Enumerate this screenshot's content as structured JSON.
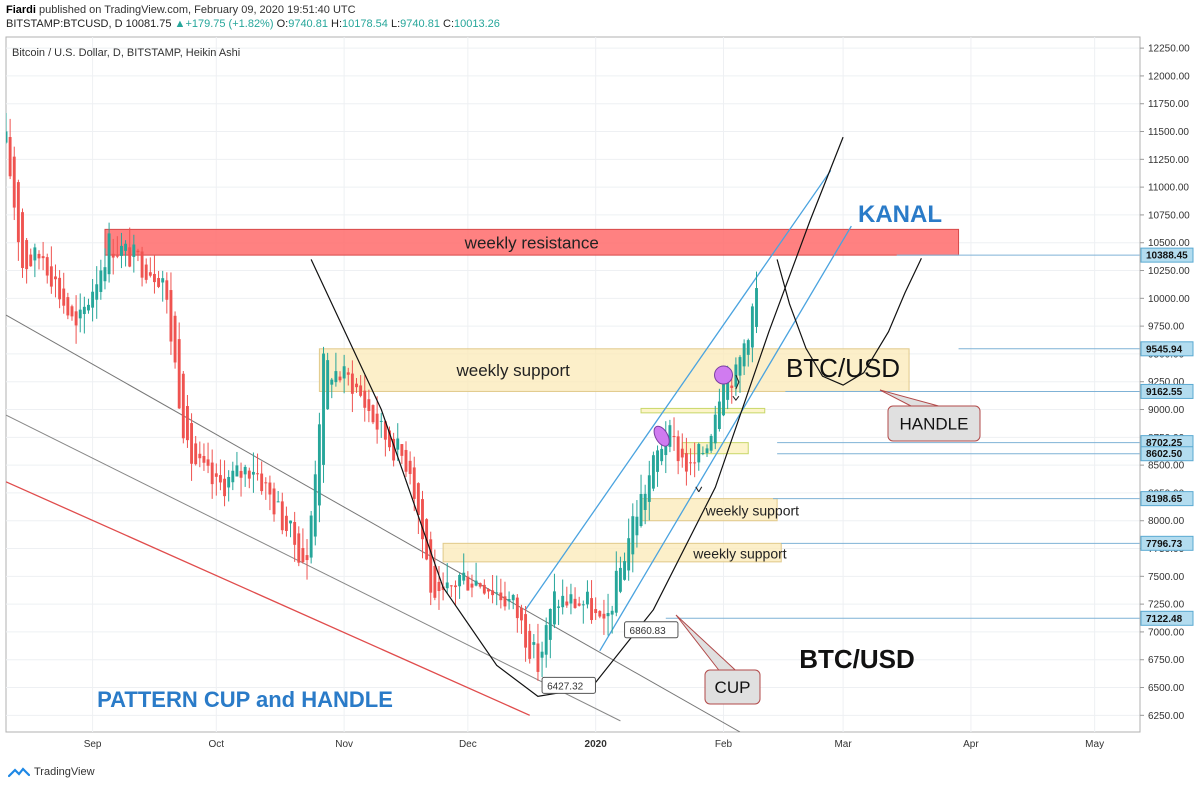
{
  "header": {
    "author": "Fiardi",
    "published_text": "published on TradingView.com, February 09, 2020 19:51:40 UTC",
    "symbol": "BITSTAMP:BTCUSD, D",
    "price": "10081.75",
    "change_icon": "triangle-up-icon",
    "change": "+179.75 (+1.82%)",
    "o_label": "O:",
    "o": "9740.81",
    "h_label": "H:",
    "h": "10178.54",
    "l_label": "L:",
    "l": "9740.81",
    "c_label": "C:",
    "c": "10013.26"
  },
  "footer": {
    "brand": "TradingView",
    "logo_icon": "tradingview-logo-icon"
  },
  "colors": {
    "up": "#26a69a",
    "down": "#ef5350",
    "channel": "#4aa3df",
    "support": "#fbe9b7",
    "resistance": "#ff6b6b"
  },
  "chart_data": {
    "type": "candlestick",
    "title": "Bitcoin / U.S. Dollar, D, BITSTAMP, Heikin Ashi",
    "y_range": [
      6100,
      12350
    ],
    "x_range": [
      "2019-08-11",
      "2020-05-12"
    ],
    "y_ticks": [
      12250,
      12000,
      11750,
      11500,
      11250,
      11000,
      10750,
      10500,
      10250,
      10000,
      9750,
      9500,
      9250,
      9000,
      8750,
      8500,
      8250,
      8000,
      7750,
      7500,
      7250,
      7000,
      6750,
      6500,
      6250
    ],
    "x_ticks": [
      {
        "date": "2019-09-01",
        "label": "Sep"
      },
      {
        "date": "2019-10-01",
        "label": "Oct"
      },
      {
        "date": "2019-11-01",
        "label": "Nov"
      },
      {
        "date": "2019-12-01",
        "label": "Dec"
      },
      {
        "date": "2020-01-01",
        "label": "2020"
      },
      {
        "date": "2020-02-01",
        "label": "Feb"
      },
      {
        "date": "2020-03-01",
        "label": "Mar"
      },
      {
        "date": "2020-04-01",
        "label": "Apr"
      },
      {
        "date": "2020-05-01",
        "label": "May"
      }
    ],
    "price_tags": [
      "10388.45",
      "9545.94",
      "9162.55",
      "8702.25",
      "8602.50",
      "8198.65",
      "7796.73",
      "7122.48"
    ],
    "series_anchors": [
      {
        "date": "2019-08-11",
        "price": 11400
      },
      {
        "date": "2019-08-15",
        "price": 10300
      },
      {
        "date": "2019-08-20",
        "price": 10400
      },
      {
        "date": "2019-08-28",
        "price": 9700
      },
      {
        "date": "2019-09-05",
        "price": 10500
      },
      {
        "date": "2019-09-18",
        "price": 10200
      },
      {
        "date": "2019-09-24",
        "price": 8600
      },
      {
        "date": "2019-10-01",
        "price": 8300
      },
      {
        "date": "2019-10-10",
        "price": 8500
      },
      {
        "date": "2019-10-23",
        "price": 7600
      },
      {
        "date": "2019-10-27",
        "price": 9400
      },
      {
        "date": "2019-11-03",
        "price": 9250
      },
      {
        "date": "2019-11-10",
        "price": 8800
      },
      {
        "date": "2019-11-17",
        "price": 8500
      },
      {
        "date": "2019-11-23",
        "price": 7200
      },
      {
        "date": "2019-11-29",
        "price": 7500
      },
      {
        "date": "2019-12-05",
        "price": 7450
      },
      {
        "date": "2019-12-12",
        "price": 7250
      },
      {
        "date": "2019-12-18",
        "price": 6700
      },
      {
        "date": "2019-12-22",
        "price": 7300
      },
      {
        "date": "2019-12-30",
        "price": 7250
      },
      {
        "date": "2020-01-03",
        "price": 7000
      },
      {
        "date": "2020-01-10",
        "price": 8000
      },
      {
        "date": "2020-01-18",
        "price": 8800
      },
      {
        "date": "2020-01-24",
        "price": 8450
      },
      {
        "date": "2020-01-28",
        "price": 8700
      },
      {
        "date": "2020-02-01",
        "price": 9350
      },
      {
        "date": "2020-02-04",
        "price": 9300
      },
      {
        "date": "2020-02-09",
        "price": 10050
      }
    ],
    "annotations": {
      "weekly_resistance": {
        "label": "weekly resistance",
        "from": "2019-09-04",
        "to": "2020-03-29",
        "low": 10388.45,
        "high": 10620
      },
      "weekly_supports": [
        {
          "label": "weekly support",
          "from": "2019-10-26",
          "to": "2020-03-17",
          "low": 9162.55,
          "high": 9545.94
        },
        {
          "label": "weekly support",
          "from": "2020-01-12",
          "to": "2020-02-14",
          "low": 8000,
          "high": 8198.65
        },
        {
          "label": "weekly support",
          "from": "2019-11-25",
          "to": "2020-02-15",
          "low": 7630,
          "high": 7796.73
        }
      ],
      "support_small": [
        {
          "from": "2020-01-22",
          "to": "2020-02-07",
          "low": 8602.5,
          "high": 8702.25
        },
        {
          "from": "2020-01-12",
          "to": "2020-02-11",
          "low": 8970,
          "high": 9010
        }
      ],
      "channel_label": "KANAL",
      "pair_label_1": "BTC/USD",
      "pair_label_2": "BTC/USD",
      "pattern_title": "PATTERN CUP and HANDLE",
      "callout_handle": "HANDLE",
      "callout_cup": "CUP",
      "low_label_1": "6427.32",
      "low_label_2": "6860.83"
    }
  }
}
